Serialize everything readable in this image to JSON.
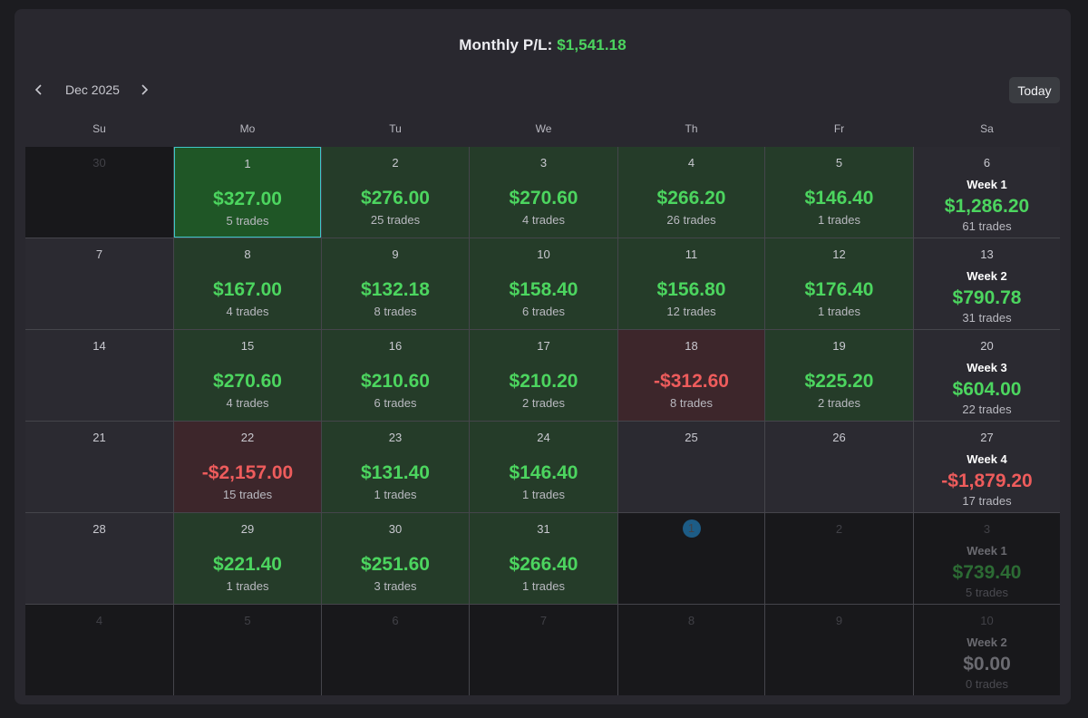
{
  "header": {
    "title_label": "Monthly P/L:",
    "title_value": "$1,541.18"
  },
  "nav": {
    "month": "Dec 2025",
    "today_label": "Today"
  },
  "weekdays": [
    "Su",
    "Mo",
    "Tu",
    "We",
    "Th",
    "Fr",
    "Sa"
  ],
  "colors": {
    "profit": "#4cd55f",
    "loss": "#ee5c5c",
    "accent": "#3ec7c7"
  },
  "weeks": [
    {
      "days": [
        {
          "day": "30",
          "kind": "dim"
        },
        {
          "day": "1",
          "kind": "profit",
          "pl": "$327.00",
          "trades": "5 trades",
          "selected": true
        },
        {
          "day": "2",
          "kind": "profit",
          "pl": "$276.00",
          "trades": "25 trades"
        },
        {
          "day": "3",
          "kind": "profit",
          "pl": "$270.60",
          "trades": "4 trades"
        },
        {
          "day": "4",
          "kind": "profit",
          "pl": "$266.20",
          "trades": "26 trades"
        },
        {
          "day": "5",
          "kind": "profit",
          "pl": "$146.40",
          "trades": "1 trades"
        }
      ],
      "summary": {
        "day": "6",
        "label": "Week 1",
        "pl": "$1,286.20",
        "trades": "61 trades",
        "sign": "pos",
        "dim": false
      }
    },
    {
      "days": [
        {
          "day": "7",
          "kind": "empty"
        },
        {
          "day": "8",
          "kind": "profit",
          "pl": "$167.00",
          "trades": "4 trades"
        },
        {
          "day": "9",
          "kind": "profit",
          "pl": "$132.18",
          "trades": "8 trades"
        },
        {
          "day": "10",
          "kind": "profit",
          "pl": "$158.40",
          "trades": "6 trades"
        },
        {
          "day": "11",
          "kind": "profit",
          "pl": "$156.80",
          "trades": "12 trades"
        },
        {
          "day": "12",
          "kind": "profit",
          "pl": "$176.40",
          "trades": "1 trades"
        }
      ],
      "summary": {
        "day": "13",
        "label": "Week 2",
        "pl": "$790.78",
        "trades": "31 trades",
        "sign": "pos",
        "dim": false
      }
    },
    {
      "days": [
        {
          "day": "14",
          "kind": "empty"
        },
        {
          "day": "15",
          "kind": "profit",
          "pl": "$270.60",
          "trades": "4 trades"
        },
        {
          "day": "16",
          "kind": "profit",
          "pl": "$210.60",
          "trades": "6 trades"
        },
        {
          "day": "17",
          "kind": "profit",
          "pl": "$210.20",
          "trades": "2 trades"
        },
        {
          "day": "18",
          "kind": "loss",
          "pl": "-$312.60",
          "trades": "8 trades"
        },
        {
          "day": "19",
          "kind": "profit",
          "pl": "$225.20",
          "trades": "2 trades"
        }
      ],
      "summary": {
        "day": "20",
        "label": "Week 3",
        "pl": "$604.00",
        "trades": "22 trades",
        "sign": "pos",
        "dim": false
      }
    },
    {
      "days": [
        {
          "day": "21",
          "kind": "empty"
        },
        {
          "day": "22",
          "kind": "loss",
          "pl": "-$2,157.00",
          "trades": "15 trades"
        },
        {
          "day": "23",
          "kind": "profit",
          "pl": "$131.40",
          "trades": "1 trades"
        },
        {
          "day": "24",
          "kind": "profit",
          "pl": "$146.40",
          "trades": "1 trades"
        },
        {
          "day": "25",
          "kind": "empty"
        },
        {
          "day": "26",
          "kind": "empty"
        }
      ],
      "summary": {
        "day": "27",
        "label": "Week 4",
        "pl": "-$1,879.20",
        "trades": "17 trades",
        "sign": "neg",
        "dim": false
      }
    },
    {
      "days": [
        {
          "day": "28",
          "kind": "empty"
        },
        {
          "day": "29",
          "kind": "profit",
          "pl": "$221.40",
          "trades": "1 trades"
        },
        {
          "day": "30",
          "kind": "profit",
          "pl": "$251.60",
          "trades": "3 trades"
        },
        {
          "day": "31",
          "kind": "profit",
          "pl": "$266.40",
          "trades": "1 trades"
        },
        {
          "day": "1",
          "kind": "dim",
          "today": true
        },
        {
          "day": "2",
          "kind": "dim"
        }
      ],
      "summary": {
        "day": "3",
        "label": "Week 1",
        "pl": "$739.40",
        "trades": "5 trades",
        "sign": "pos",
        "dim": true
      }
    },
    {
      "days": [
        {
          "day": "4",
          "kind": "dim"
        },
        {
          "day": "5",
          "kind": "dim"
        },
        {
          "day": "6",
          "kind": "dim"
        },
        {
          "day": "7",
          "kind": "dim"
        },
        {
          "day": "8",
          "kind": "dim"
        },
        {
          "day": "9",
          "kind": "dim"
        }
      ],
      "summary": {
        "day": "10",
        "label": "Week 2",
        "pl": "$0.00",
        "trades": "0 trades",
        "sign": "zero",
        "dim": true
      }
    }
  ]
}
